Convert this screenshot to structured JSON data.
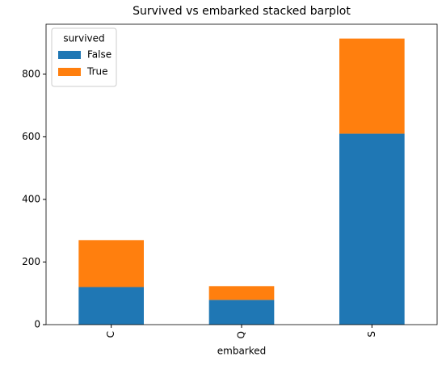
{
  "chart_data": {
    "type": "stacked_bar",
    "title": "Survived vs embarked stacked barplot",
    "x_label": "embarked",
    "legend_title": "survived",
    "categories": [
      "C",
      "Q",
      "S"
    ],
    "series": [
      {
        "name": "False",
        "color": "#1f77b4",
        "values": [
          120,
          79,
          610
        ]
      },
      {
        "name": "True",
        "color": "#ff7f0e",
        "values": [
          150,
          44,
          304
        ]
      }
    ],
    "ylim": [
      0,
      959.7
    ],
    "yticks": [
      0,
      200,
      400,
      600,
      800
    ],
    "legend": "upper left"
  }
}
